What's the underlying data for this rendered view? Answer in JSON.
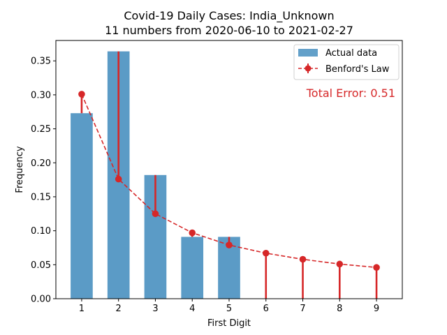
{
  "chart_data": {
    "type": "bar",
    "title": "Covid-19 Daily Cases: India_Unknown",
    "subtitle": "11 numbers from 2020-06-10 to 2021-02-27",
    "xlabel": "First Digit",
    "ylabel": "Frequency",
    "categories": [
      "1",
      "2",
      "3",
      "4",
      "5",
      "6",
      "7",
      "8",
      "9"
    ],
    "ylim": [
      0,
      0.38
    ],
    "yticks": [
      "0.00",
      "0.05",
      "0.10",
      "0.15",
      "0.20",
      "0.25",
      "0.30",
      "0.35"
    ],
    "series": [
      {
        "name": "Actual data",
        "kind": "bar",
        "color": "#5b9bc6",
        "values": [
          0.273,
          0.364,
          0.182,
          0.091,
          0.091,
          0,
          0,
          0,
          0
        ]
      },
      {
        "name": "Benford's Law",
        "kind": "line-dashed-with-errorbars",
        "color": "#d62728",
        "values": [
          0.301,
          0.176,
          0.125,
          0.097,
          0.079,
          0.067,
          0.058,
          0.051,
          0.046
        ]
      }
    ],
    "legend_position": "top-right",
    "annotation": "Total Error: 0.51",
    "annotation_color": "#d62728",
    "grid": false
  }
}
